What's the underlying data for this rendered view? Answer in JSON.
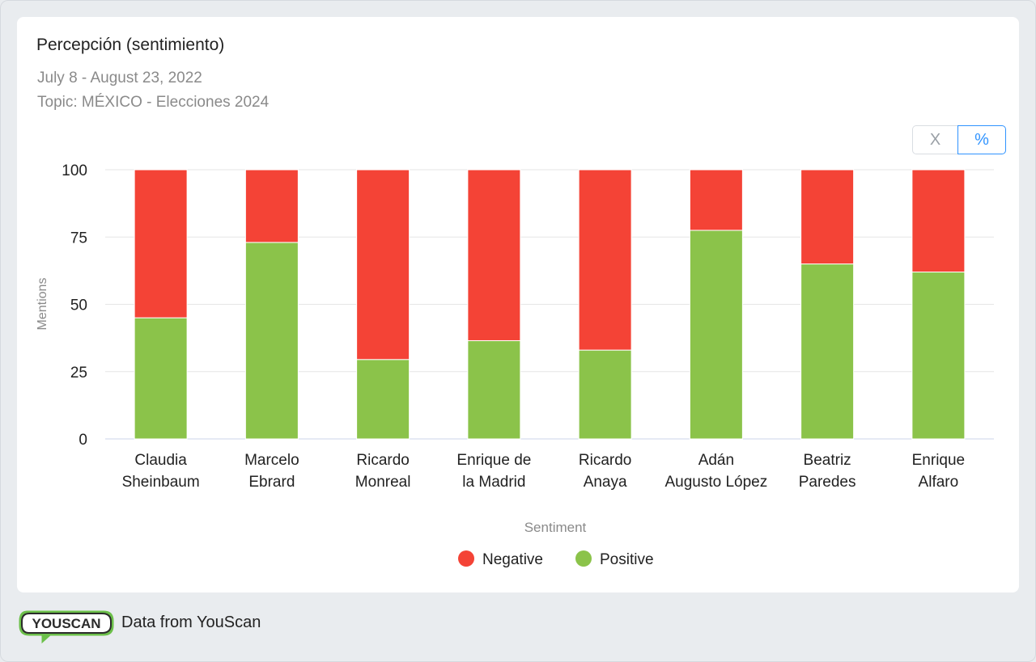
{
  "card": {
    "title": "Percepción (sentimiento)",
    "date_range": "July 8 - August 23, 2022",
    "topic": "Topic: MÉXICO - Elecciones 2024"
  },
  "toggle": {
    "absolute_label": "X",
    "percent_label": "%",
    "active": "percent"
  },
  "colors": {
    "negative": "#f44336",
    "positive": "#8bc34a",
    "grid": "#e6e6e6",
    "axis": "#cbd5e8"
  },
  "chart_data": {
    "type": "bar",
    "stacked": true,
    "title": "Percepción (sentimiento)",
    "xlabel": "Sentiment",
    "ylabel": "Mentions",
    "ylim": [
      0,
      100
    ],
    "yticks": [
      "0",
      "25",
      "50",
      "75",
      "100"
    ],
    "categories": [
      [
        "Claudia",
        "Sheinbaum"
      ],
      [
        "Marcelo",
        "Ebrard"
      ],
      [
        "Ricardo",
        "Monreal"
      ],
      [
        "Enrique de",
        "la Madrid"
      ],
      [
        "Ricardo",
        "Anaya"
      ],
      [
        "Adán",
        "Augusto López"
      ],
      [
        "Beatriz",
        "Paredes"
      ],
      [
        "Enrique",
        "Alfaro"
      ]
    ],
    "series": [
      {
        "name": "Positive",
        "values": [
          45,
          73,
          29.5,
          36.5,
          33,
          77.5,
          65,
          62
        ]
      },
      {
        "name": "Negative",
        "values": [
          55,
          27,
          70.5,
          63.5,
          67,
          22.5,
          35,
          38
        ]
      }
    ],
    "legend": [
      {
        "name": "Negative",
        "color_key": "negative"
      },
      {
        "name": "Positive",
        "color_key": "positive"
      }
    ]
  },
  "footer": {
    "logo_text": "YOUSCAN",
    "source_text": "Data from YouScan"
  }
}
